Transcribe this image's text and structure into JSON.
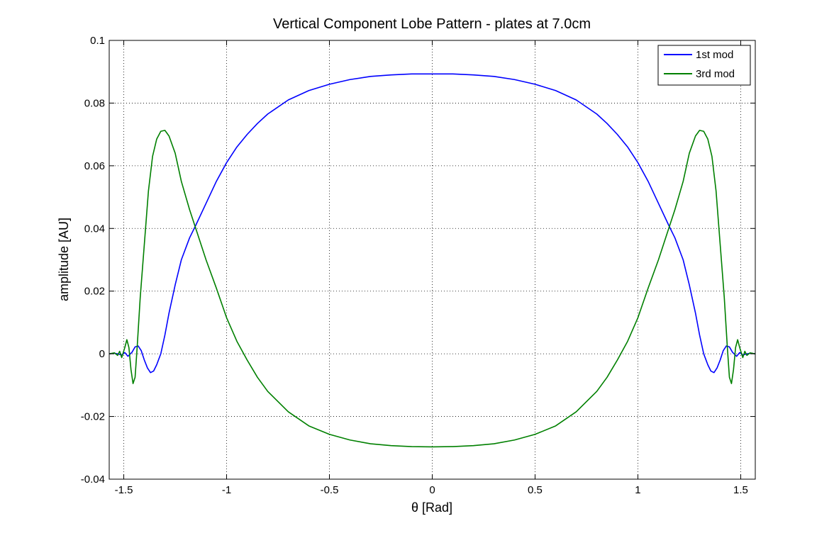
{
  "chart_data": {
    "type": "line",
    "title": "Vertical Component Lobe Pattern - plates at 7.0cm",
    "xlabel": "θ [Rad]",
    "ylabel": "amplitude [AU]",
    "xlim": [
      -1.5708,
      1.5708
    ],
    "ylim": [
      -0.04,
      0.1
    ],
    "grid": true,
    "legend_position": "top-right",
    "x_ticks": [
      -1.5,
      -1,
      -0.5,
      0,
      0.5,
      1,
      1.5
    ],
    "x_tick_labels": [
      "-1.5",
      "-1",
      "-0.5",
      "0",
      "0.5",
      "1",
      "1.5"
    ],
    "y_ticks": [
      -0.04,
      -0.02,
      0,
      0.02,
      0.04,
      0.06,
      0.08,
      0.1
    ],
    "y_tick_labels": [
      "-0.04",
      "-0.02",
      "0",
      "0.02",
      "0.04",
      "0.06",
      "0.08",
      "0.1"
    ],
    "series": [
      {
        "name": "1st mod",
        "color": "#0000ff",
        "points": [
          [
            -1.57,
            0.0
          ],
          [
            -1.55,
            0.0002
          ],
          [
            -1.53,
            0.0
          ],
          [
            -1.51,
            -0.0004
          ],
          [
            -1.495,
            0.0004
          ],
          [
            -1.48,
            -0.0008
          ],
          [
            -1.46,
            0.0005
          ],
          [
            -1.445,
            0.0022
          ],
          [
            -1.43,
            0.0025
          ],
          [
            -1.415,
            0.001
          ],
          [
            -1.4,
            -0.002
          ],
          [
            -1.385,
            -0.0045
          ],
          [
            -1.37,
            -0.006
          ],
          [
            -1.355,
            -0.0055
          ],
          [
            -1.34,
            -0.0035
          ],
          [
            -1.32,
            0.0
          ],
          [
            -1.3,
            0.006
          ],
          [
            -1.28,
            0.013
          ],
          [
            -1.25,
            0.022
          ],
          [
            -1.22,
            0.03
          ],
          [
            -1.18,
            0.037
          ],
          [
            -1.15,
            0.041
          ],
          [
            -1.1,
            0.048
          ],
          [
            -1.05,
            0.055
          ],
          [
            -1.0,
            0.061
          ],
          [
            -0.95,
            0.066
          ],
          [
            -0.9,
            0.07
          ],
          [
            -0.85,
            0.0735
          ],
          [
            -0.8,
            0.0765
          ],
          [
            -0.7,
            0.081
          ],
          [
            -0.6,
            0.084
          ],
          [
            -0.5,
            0.086
          ],
          [
            -0.4,
            0.0875
          ],
          [
            -0.3,
            0.0885
          ],
          [
            -0.2,
            0.089
          ],
          [
            -0.1,
            0.0893
          ],
          [
            0.0,
            0.0893
          ],
          [
            0.1,
            0.0893
          ],
          [
            0.2,
            0.089
          ],
          [
            0.3,
            0.0885
          ],
          [
            0.4,
            0.0875
          ],
          [
            0.5,
            0.086
          ],
          [
            0.6,
            0.084
          ],
          [
            0.7,
            0.081
          ],
          [
            0.8,
            0.0765
          ],
          [
            0.85,
            0.0735
          ],
          [
            0.9,
            0.07
          ],
          [
            0.95,
            0.066
          ],
          [
            1.0,
            0.061
          ],
          [
            1.05,
            0.055
          ],
          [
            1.1,
            0.048
          ],
          [
            1.15,
            0.041
          ],
          [
            1.18,
            0.037
          ],
          [
            1.22,
            0.03
          ],
          [
            1.25,
            0.022
          ],
          [
            1.28,
            0.013
          ],
          [
            1.3,
            0.006
          ],
          [
            1.32,
            0.0
          ],
          [
            1.34,
            -0.0035
          ],
          [
            1.355,
            -0.0055
          ],
          [
            1.37,
            -0.006
          ],
          [
            1.385,
            -0.0045
          ],
          [
            1.4,
            -0.002
          ],
          [
            1.415,
            0.001
          ],
          [
            1.43,
            0.0025
          ],
          [
            1.445,
            0.0022
          ],
          [
            1.46,
            0.0005
          ],
          [
            1.48,
            -0.0008
          ],
          [
            1.495,
            0.0004
          ],
          [
            1.51,
            -0.0004
          ],
          [
            1.53,
            0.0
          ],
          [
            1.55,
            0.0002
          ],
          [
            1.57,
            0.0
          ]
        ]
      },
      {
        "name": "3rd mod",
        "color": "#008000",
        "points": [
          [
            -1.57,
            0.0
          ],
          [
            -1.545,
            0.0003
          ],
          [
            -1.53,
            -0.0005
          ],
          [
            -1.52,
            0.0008
          ],
          [
            -1.51,
            -0.0012
          ],
          [
            -1.495,
            0.002
          ],
          [
            -1.485,
            0.0045
          ],
          [
            -1.475,
            0.002
          ],
          [
            -1.465,
            -0.005
          ],
          [
            -1.455,
            -0.0095
          ],
          [
            -1.445,
            -0.0075
          ],
          [
            -1.435,
            0.002
          ],
          [
            -1.42,
            0.018
          ],
          [
            -1.4,
            0.035
          ],
          [
            -1.38,
            0.052
          ],
          [
            -1.36,
            0.063
          ],
          [
            -1.34,
            0.0685
          ],
          [
            -1.32,
            0.071
          ],
          [
            -1.3,
            0.0713
          ],
          [
            -1.28,
            0.0695
          ],
          [
            -1.25,
            0.064
          ],
          [
            -1.22,
            0.055
          ],
          [
            -1.18,
            0.046
          ],
          [
            -1.15,
            0.04
          ],
          [
            -1.1,
            0.03
          ],
          [
            -1.05,
            0.021
          ],
          [
            -1.0,
            0.0115
          ],
          [
            -0.95,
            0.004
          ],
          [
            -0.9,
            -0.002
          ],
          [
            -0.85,
            -0.0075
          ],
          [
            -0.8,
            -0.012
          ],
          [
            -0.7,
            -0.0185
          ],
          [
            -0.6,
            -0.023
          ],
          [
            -0.5,
            -0.0257
          ],
          [
            -0.4,
            -0.0275
          ],
          [
            -0.3,
            -0.0287
          ],
          [
            -0.2,
            -0.0293
          ],
          [
            -0.1,
            -0.0296
          ],
          [
            0.0,
            -0.0297
          ],
          [
            0.1,
            -0.0296
          ],
          [
            0.2,
            -0.0293
          ],
          [
            0.3,
            -0.0287
          ],
          [
            0.4,
            -0.0275
          ],
          [
            0.5,
            -0.0257
          ],
          [
            0.6,
            -0.023
          ],
          [
            0.7,
            -0.0185
          ],
          [
            0.8,
            -0.012
          ],
          [
            0.85,
            -0.0075
          ],
          [
            0.9,
            -0.002
          ],
          [
            0.95,
            0.004
          ],
          [
            1.0,
            0.0115
          ],
          [
            1.05,
            0.021
          ],
          [
            1.1,
            0.03
          ],
          [
            1.15,
            0.04
          ],
          [
            1.18,
            0.046
          ],
          [
            1.22,
            0.055
          ],
          [
            1.25,
            0.064
          ],
          [
            1.28,
            0.0695
          ],
          [
            1.3,
            0.0713
          ],
          [
            1.32,
            0.071
          ],
          [
            1.34,
            0.0685
          ],
          [
            1.36,
            0.063
          ],
          [
            1.38,
            0.052
          ],
          [
            1.4,
            0.035
          ],
          [
            1.42,
            0.018
          ],
          [
            1.435,
            0.002
          ],
          [
            1.445,
            -0.0075
          ],
          [
            1.455,
            -0.0095
          ],
          [
            1.465,
            -0.005
          ],
          [
            1.475,
            0.002
          ],
          [
            1.485,
            0.0045
          ],
          [
            1.495,
            0.002
          ],
          [
            1.51,
            -0.0012
          ],
          [
            1.52,
            0.0008
          ],
          [
            1.53,
            -0.0005
          ],
          [
            1.545,
            0.0003
          ],
          [
            1.57,
            0.0
          ]
        ]
      }
    ]
  }
}
